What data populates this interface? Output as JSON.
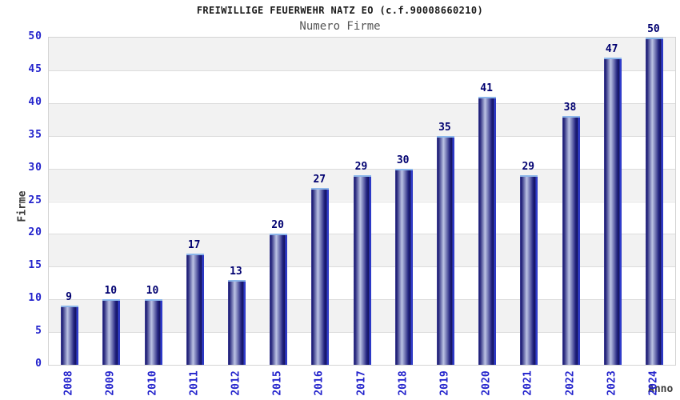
{
  "chart_data": {
    "type": "bar",
    "title": "FREIWILLIGE FEUERWEHR NATZ EO (c.f.90008660210)",
    "subtitle": "Numero Firme",
    "xlabel": "Anno",
    "ylabel": "Firme",
    "categories": [
      "2008",
      "2009",
      "2010",
      "2011",
      "2012",
      "2015",
      "2016",
      "2017",
      "2018",
      "2019",
      "2020",
      "2021",
      "2022",
      "2023",
      "2024"
    ],
    "values": [
      9,
      10,
      10,
      17,
      13,
      20,
      27,
      29,
      30,
      35,
      41,
      29,
      38,
      47,
      50
    ],
    "ylim": [
      0,
      50
    ],
    "yticks": [
      0,
      5,
      10,
      15,
      20,
      25,
      30,
      35,
      40,
      45,
      50
    ],
    "grid": true,
    "legend": "none",
    "band_fill": "alternating horizontal bands every 5 units, shaded band from 5-10, 15-20, 25-30, 35-40, 45-50",
    "colors": {
      "title": "#1a1a1a",
      "subtitle": "#555555",
      "axis_tick_label": "#2323cc",
      "value_label": "#000070",
      "axis_title": "#3c3c3c",
      "band": "#f2f2f2",
      "band_alt": "#ffffff",
      "grid_line": "#dcdcdc",
      "plot_border": "#d4d4d4",
      "bar_dark": "#1b1b74",
      "bar_mid": "#474799",
      "bar_light": "#bcc3e4",
      "bar_edge": "#3440d2",
      "bar_cap": "#8cb6ea",
      "background": "#ffffff"
    }
  }
}
